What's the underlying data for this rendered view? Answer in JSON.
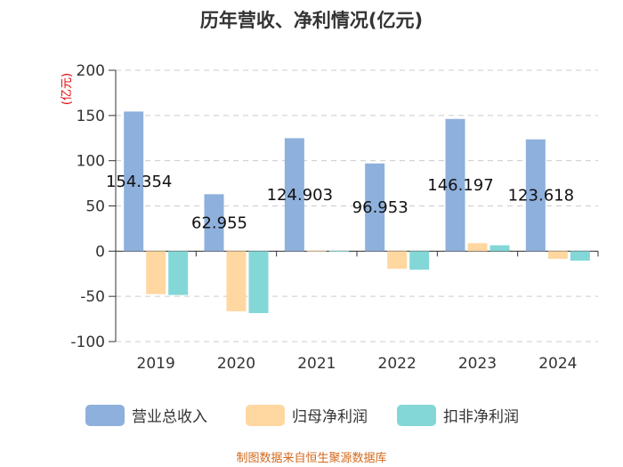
{
  "chart_data": {
    "type": "bar",
    "title": "历年营收、净利情况(亿元)",
    "unit_label": "(亿元)",
    "categories": [
      "2019",
      "2020",
      "2021",
      "2022",
      "2023",
      "2024"
    ],
    "series": [
      {
        "name": "营业总收入",
        "color": "#8eb0dc",
        "values": [
          154.354,
          62.955,
          124.903,
          96.953,
          146.197,
          123.618
        ]
      },
      {
        "name": "归母净利润",
        "color": "#ffd7a0",
        "values": [
          -47.5,
          -66.5,
          0.5,
          -19.5,
          8.8,
          -8.5
        ]
      },
      {
        "name": "扣非净利润",
        "color": "#84d7d7",
        "values": [
          -48.5,
          -68.5,
          0.3,
          -20.5,
          6.5,
          -10.5
        ]
      }
    ],
    "data_labels": [
      "154.354",
      "62.955",
      "124.903",
      "96.953",
      "146.197",
      "123.618"
    ],
    "y_ticks": [
      "200",
      "150",
      "100",
      "50",
      "0",
      "-50",
      "-100"
    ],
    "ylim": [
      -100,
      200
    ],
    "grid": true,
    "legend_position": "bottom",
    "source": "制图数据来自恒生聚源数据库"
  }
}
